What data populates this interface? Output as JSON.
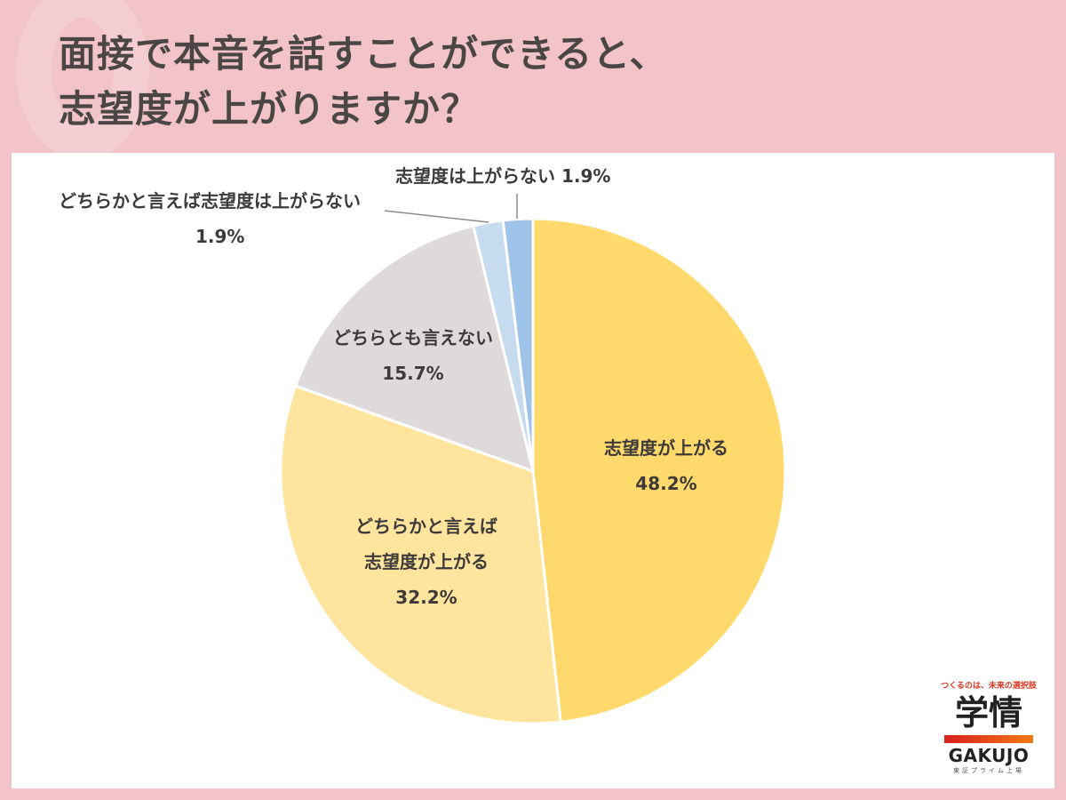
{
  "title": {
    "line1": "面接で本音を話すことができると、",
    "line2": "志望度が上がりますか？"
  },
  "chart_data": {
    "type": "pie",
    "title": "面接で本音を話すことができると、志望度が上がりますか？",
    "start_angle": "12 o'clock",
    "direction": "clockwise",
    "slices": [
      {
        "label": "志望度が上がる",
        "value": 48.2,
        "color": "#ffd96b"
      },
      {
        "label": "どちらかと言えば志望度が上がる",
        "value": 32.2,
        "color": "#ffe49e"
      },
      {
        "label": "どちらとも言えない",
        "value": 15.7,
        "color": "#dedadb"
      },
      {
        "label": "どちらかと言えば志望度は上がらない",
        "value": 1.9,
        "color": "#c6dbf0"
      },
      {
        "label": "志望度は上がらない",
        "value": 1.9,
        "color": "#9dc3e8"
      }
    ],
    "legend": "none (data labels on slices)"
  },
  "labels": {
    "s1_name": "志望度が上がる",
    "s1_value": "48.2%",
    "s2_name_a": "どちらかと言えば",
    "s2_name_b": "志望度が上がる",
    "s2_value": "32.2%",
    "s3_name": "どちらとも言えない",
    "s3_value": "15.7%",
    "s4_name": "どちらかと言えば志望度は上がらない",
    "s4_value": "1.9%",
    "s5_full": "志望度は上がらない 1.9%"
  },
  "logo": {
    "tagline": "つくるのは、未来の選択肢",
    "kanji": "学情",
    "name": "GAKUJO",
    "sub": "東証プライム上場"
  }
}
